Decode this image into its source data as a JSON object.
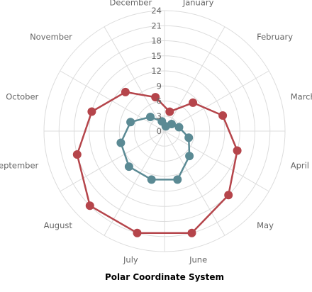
{
  "chart_data": {
    "type": "polar-line",
    "title": "Polar Coordinate System",
    "categories": [
      "January",
      "February",
      "March",
      "April",
      "May",
      "June",
      "July",
      "August",
      "September",
      "October",
      "November",
      "December"
    ],
    "radial_ticks": [
      0,
      3,
      6,
      9,
      12,
      15,
      18,
      21,
      24
    ],
    "rlim": [
      0,
      24
    ],
    "grid": true,
    "legend": "none",
    "series": [
      {
        "color": "#b5454b",
        "values": [
          4,
          8,
          12,
          15,
          18,
          21,
          21,
          21,
          18,
          15,
          11,
          7
        ]
      },
      {
        "color": "#5b8a94",
        "values": [
          1,
          2,
          3,
          5,
          7,
          10,
          10,
          10,
          9,
          7,
          4,
          2
        ]
      }
    ]
  }
}
